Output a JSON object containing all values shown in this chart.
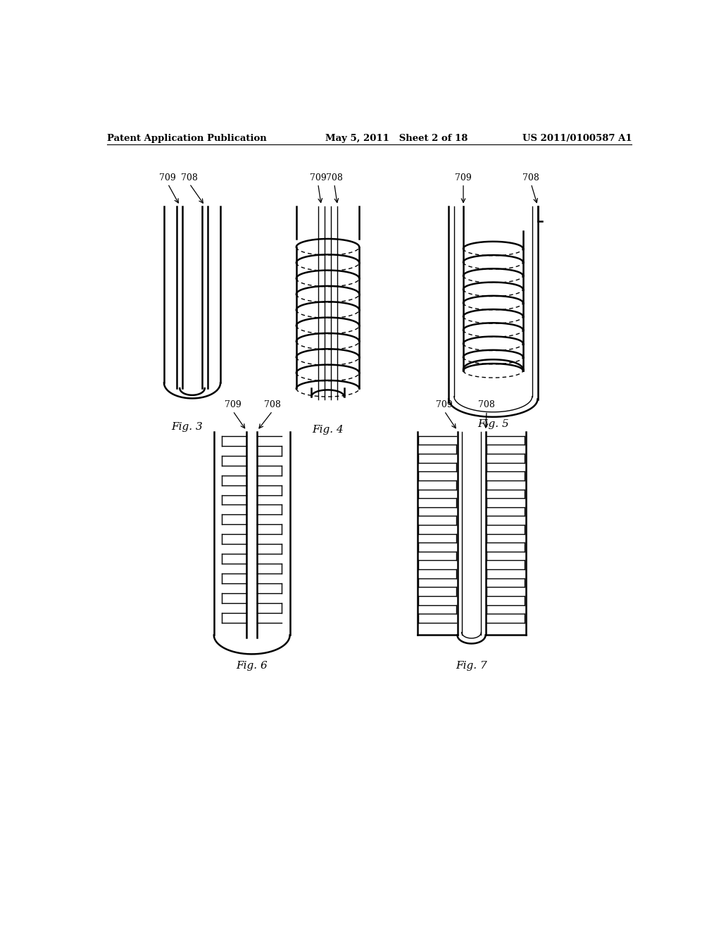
{
  "bg_color": "#ffffff",
  "line_color": "#000000",
  "header_left": "Patent Application Publication",
  "header_mid": "May 5, 2011   Sheet 2 of 18",
  "header_right": "US 2011/0100587 A1",
  "fig_labels": [
    "Fig. 3",
    "Fig. 4",
    "Fig. 5",
    "Fig. 6",
    "Fig. 7"
  ]
}
